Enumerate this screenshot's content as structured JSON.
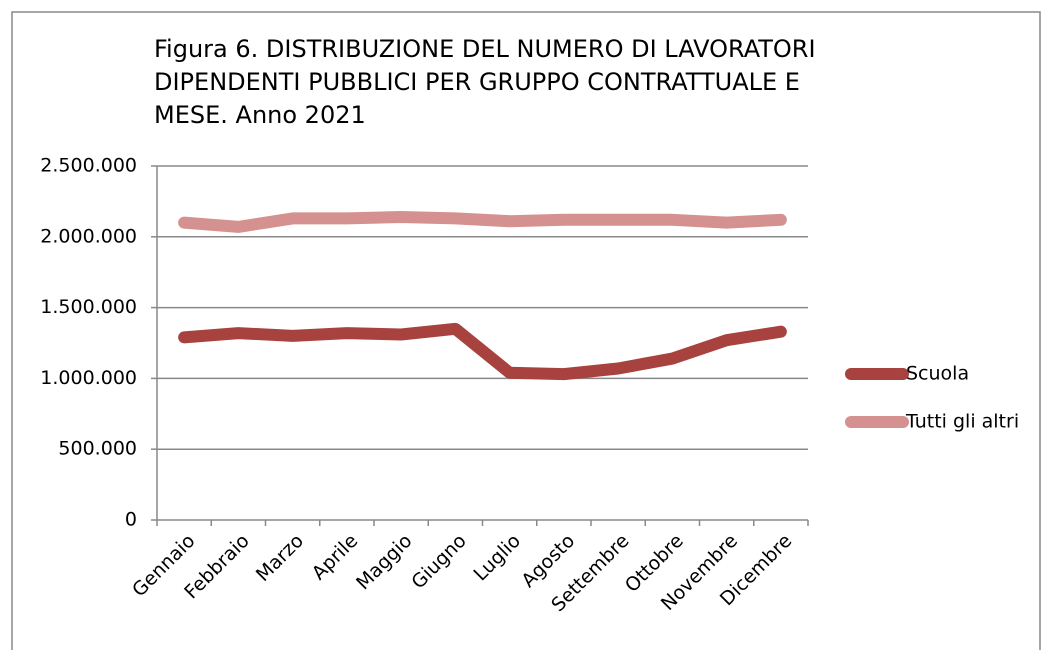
{
  "chart_data": {
    "type": "line",
    "title": [
      "Figura 6. DISTRIBUZIONE DEL NUMERO DI LAVORATORI",
      "DIPENDENTI PUBBLICI PER GRUPPO CONTRATTUALE E",
      "MESE.  Anno 2021"
    ],
    "categories": [
      "Gennaio",
      "Febbraio",
      "Marzo",
      "Aprile",
      "Maggio",
      "Giugno",
      "Luglio",
      "Agosto",
      "Settembre",
      "Ottobre",
      "Novembre",
      "Dicembre"
    ],
    "series": [
      {
        "name": "Scuola",
        "color": "#a8423f",
        "values": [
          1290000,
          1320000,
          1300000,
          1320000,
          1310000,
          1350000,
          1040000,
          1030000,
          1070000,
          1140000,
          1270000,
          1330000
        ]
      },
      {
        "name": "Tutti gli altri",
        "color": "#d4918f",
        "values": [
          2100000,
          2070000,
          2130000,
          2130000,
          2140000,
          2130000,
          2110000,
          2120000,
          2120000,
          2120000,
          2100000,
          2120000
        ]
      }
    ],
    "ylim": [
      0,
      2500000
    ],
    "yticks": [
      0,
      {
        "value": 500000,
        "label": "500.000"
      },
      {
        "value": 1000000,
        "label": "1.000.000"
      },
      {
        "value": 1500000,
        "label": "1.500.000"
      },
      {
        "value": 2000000,
        "label": "2.000.000"
      },
      {
        "value": 2500000,
        "label": "2.500.000"
      }
    ],
    "grid": true,
    "legend": "right"
  }
}
